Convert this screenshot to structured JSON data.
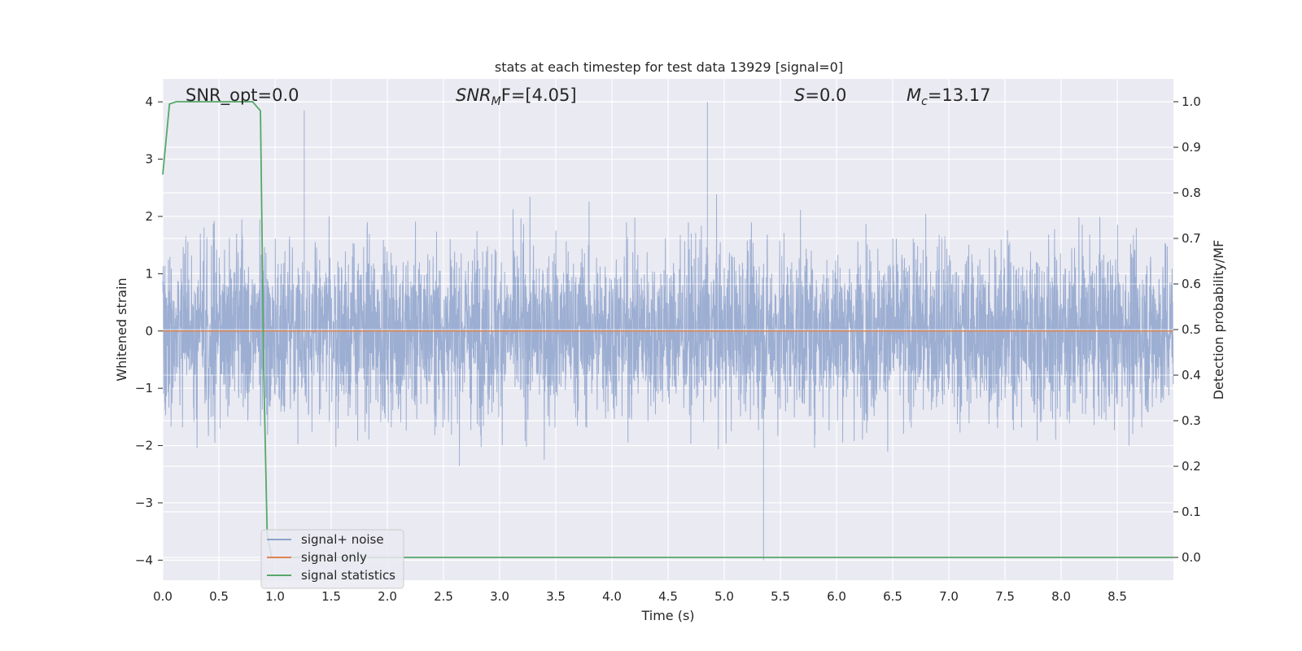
{
  "chart_data": {
    "type": "line",
    "title": "stats at each timestep for test data 13929 [signal=0]",
    "xlabel": "Time (s)",
    "ylabel_left": "Whitened strain",
    "ylabel_right": "Detection probability/MF",
    "xlim": [
      0.0,
      9.0
    ],
    "ylim_left": [
      -4.35,
      4.4
    ],
    "ylim_right": [
      -0.05,
      1.05
    ],
    "xticks": [
      "0.0",
      "0.5",
      "1.0",
      "1.5",
      "2.0",
      "2.5",
      "3.0",
      "3.5",
      "4.0",
      "4.5",
      "5.0",
      "5.5",
      "6.0",
      "6.5",
      "7.0",
      "7.5",
      "8.0",
      "8.5"
    ],
    "yticks_left": [
      "−4",
      "−3",
      "−2",
      "−1",
      "0",
      "1",
      "2",
      "3",
      "4"
    ],
    "yticks_right": [
      "0.0",
      "0.1",
      "0.2",
      "0.3",
      "0.4",
      "0.5",
      "0.6",
      "0.7",
      "0.8",
      "0.9",
      "1.0"
    ],
    "grid": true,
    "legend_position": "lower-left",
    "annotations": {
      "snr_opt": "SNR_opt=0.0",
      "snr_mf_base": "SNR",
      "snr_mf_sub": "M",
      "snr_mf_tail": "F=[4.05]",
      "s_italic": "S",
      "s_value": "=0.0",
      "mc_base": "M",
      "mc_sub": "c",
      "mc_value": "=13.17"
    },
    "series": [
      {
        "name": "signal+ noise",
        "axis": "left",
        "color": "#8ea3cc",
        "description_values": "whitened Gaussian noise, roughly within [-2.5, 2.5] with spikes up to 4.0 and down to -4.0",
        "peaks": [
          {
            "x": 1.26,
            "y": 3.85
          },
          {
            "x": 4.85,
            "y": 4.0
          },
          {
            "x": 5.35,
            "y": -4.0
          }
        ]
      },
      {
        "name": "signal only",
        "axis": "left",
        "color": "#dd8452",
        "x": [
          0.0,
          9.0
        ],
        "y": [
          0.0,
          0.0
        ]
      },
      {
        "name": "signal statistics",
        "axis": "right",
        "color": "#55a868",
        "x": [
          0.0,
          0.06,
          0.12,
          0.2,
          0.4,
          0.6,
          0.8,
          0.87,
          0.9,
          0.93,
          0.97,
          1.05,
          1.5,
          2.0,
          3.0,
          4.0,
          5.0,
          6.0,
          7.0,
          8.0,
          9.0
        ],
        "y": [
          0.84,
          0.995,
          1.0,
          1.0,
          1.0,
          1.0,
          1.0,
          0.98,
          0.4,
          0.05,
          0.0,
          0.0,
          0.0,
          0.0,
          0.0,
          0.0,
          0.0,
          0.0,
          0.0,
          0.0,
          0.0
        ]
      }
    ]
  }
}
